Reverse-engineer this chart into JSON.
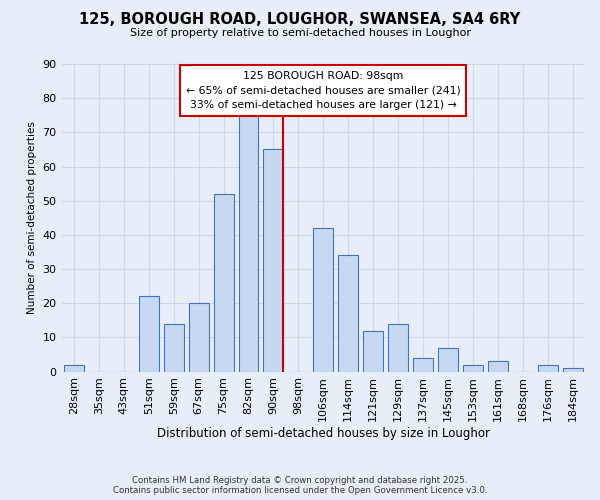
{
  "title": "125, BOROUGH ROAD, LOUGHOR, SWANSEA, SA4 6RY",
  "subtitle": "Size of property relative to semi-detached houses in Loughor",
  "xlabel": "Distribution of semi-detached houses by size in Loughor",
  "ylabel": "Number of semi-detached properties",
  "bar_labels": [
    "28sqm",
    "35sqm",
    "43sqm",
    "51sqm",
    "59sqm",
    "67sqm",
    "75sqm",
    "82sqm",
    "90sqm",
    "98sqm",
    "106sqm",
    "114sqm",
    "121sqm",
    "129sqm",
    "137sqm",
    "145sqm",
    "153sqm",
    "161sqm",
    "168sqm",
    "176sqm",
    "184sqm"
  ],
  "bar_heights": [
    2,
    0,
    0,
    22,
    14,
    20,
    52,
    75,
    65,
    0,
    42,
    34,
    12,
    14,
    4,
    7,
    2,
    3,
    0,
    2,
    1
  ],
  "bar_color": "#c6d9f1",
  "bar_edge_color": "#4472c4",
  "reference_line_color": "#cc0000",
  "annotation_title": "125 BOROUGH ROAD: 98sqm",
  "annotation_line1": "← 65% of semi-detached houses are smaller (241)",
  "annotation_line2": "33% of semi-detached houses are larger (121) →",
  "annotation_box_edge_color": "#cc0000",
  "ylim": [
    0,
    90
  ],
  "yticks": [
    0,
    10,
    20,
    30,
    40,
    50,
    60,
    70,
    80,
    90
  ],
  "background_color": "#e8eef8",
  "grid_color": "#d0d8e8",
  "footer_line1": "Contains HM Land Registry data © Crown copyright and database right 2025.",
  "footer_line2": "Contains public sector information licensed under the Open Government Licence v3.0."
}
